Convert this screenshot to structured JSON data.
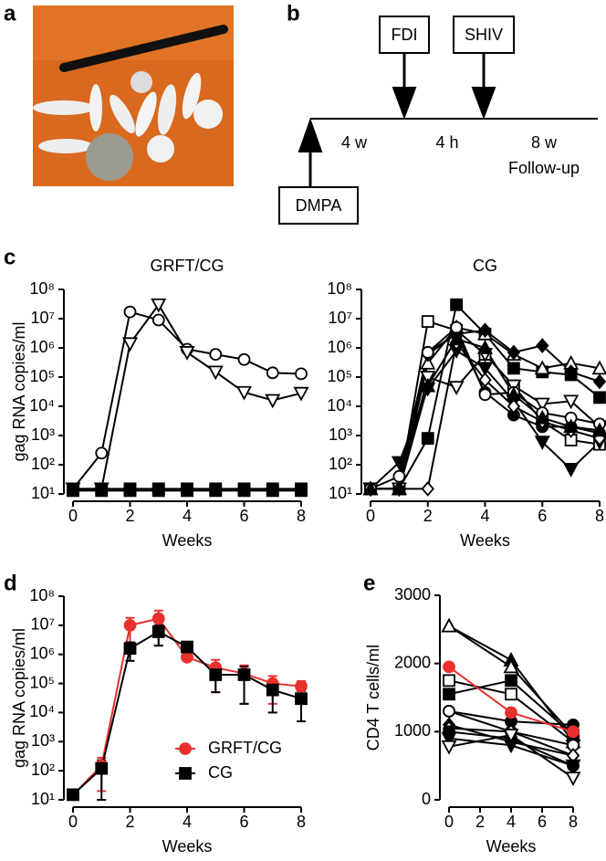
{
  "panel_labels": [
    "a",
    "b",
    "c",
    "d",
    "e"
  ],
  "timeline": {
    "boxes": [
      "FDI",
      "SHIV",
      "DMPA"
    ],
    "intervals": [
      "4 w",
      "4 h",
      "8 w"
    ],
    "note": "Follow-up"
  },
  "chart_data": [
    {
      "type": "line",
      "title": "GRFT/CG",
      "xlabel": "Weeks",
      "ylabel": "gag RNA copies/ml",
      "log_y": true,
      "x": [
        0,
        1,
        2,
        3,
        4,
        5,
        6,
        7,
        8
      ],
      "xlim": [
        0,
        8
      ],
      "xticks": [
        0,
        2,
        4,
        6,
        8
      ],
      "ylim": [
        10,
        100000000
      ],
      "yticks": [
        {
          "value": 10,
          "label": "10¹"
        },
        {
          "value": 100,
          "label": "10²"
        },
        {
          "value": 1000,
          "label": "10³"
        },
        {
          "value": 10000,
          "label": "10⁴"
        },
        {
          "value": 100000,
          "label": "10⁵"
        },
        {
          "value": 1000000,
          "label": "10⁶"
        },
        {
          "value": 10000000,
          "label": "10⁷"
        },
        {
          "value": 100000000,
          "label": "10⁸"
        }
      ],
      "series": [
        {
          "color": "#000000",
          "marker": "circle",
          "filled": false,
          "values": [
            15,
            250,
            17000000,
            9000000,
            900000,
            600000,
            400000,
            140000,
            130000
          ]
        },
        {
          "color": "#000000",
          "marker": "triangle-down",
          "filled": false,
          "values": [
            15,
            15,
            1400000,
            30000000,
            700000,
            150000,
            30000,
            16000,
            28000
          ]
        },
        {
          "color": "#000000",
          "marker": "square",
          "filled": true,
          "values": [
            15,
            15,
            15,
            15,
            15,
            15,
            15,
            15,
            15
          ]
        },
        {
          "color": "#000000",
          "marker": "square",
          "filled": true,
          "values": [
            13,
            13,
            13,
            13,
            13,
            13,
            13,
            13,
            13
          ]
        }
      ]
    },
    {
      "type": "line",
      "title": "CG",
      "xlabel": "Weeks",
      "log_y": true,
      "x": [
        0,
        1,
        2,
        3,
        4,
        5,
        6,
        7,
        8
      ],
      "xlim": [
        0,
        8
      ],
      "xticks": [
        0,
        2,
        4,
        6,
        8
      ],
      "ylim": [
        10,
        100000000
      ],
      "yticks": [
        {
          "value": 10,
          "label": "10¹"
        },
        {
          "value": 100,
          "label": "10²"
        },
        {
          "value": 1000,
          "label": "10³"
        },
        {
          "value": 10000,
          "label": "10⁴"
        },
        {
          "value": 100000,
          "label": "10⁵"
        },
        {
          "value": 1000000,
          "label": "10⁶"
        },
        {
          "value": 10000000,
          "label": "10⁷"
        },
        {
          "value": 100000000,
          "label": "10⁸"
        }
      ],
      "series": [
        {
          "color": "#000000",
          "marker": "square",
          "filled": true,
          "values": [
            15,
            15,
            800,
            30000000,
            3000000,
            200000,
            150000,
            120000,
            20000
          ]
        },
        {
          "color": "#000000",
          "marker": "triangle-up",
          "filled": false,
          "values": [
            15,
            15,
            300000,
            5000000,
            3000000,
            600000,
            200000,
            300000,
            200000
          ]
        },
        {
          "color": "#000000",
          "marker": "diamond",
          "filled": true,
          "values": [
            15,
            15,
            600000,
            3000000,
            4000000,
            700000,
            1200000,
            150000,
            70000
          ]
        },
        {
          "color": "#000000",
          "marker": "square",
          "filled": false,
          "values": [
            15,
            15,
            8000000,
            4000000,
            600000,
            50000,
            3000,
            700,
            500
          ]
        },
        {
          "color": "#000000",
          "marker": "triangle-down",
          "filled": true,
          "values": [
            15,
            120,
            40000,
            800000,
            200000,
            15000,
            600,
            70,
            600
          ]
        },
        {
          "color": "#000000",
          "marker": "circle",
          "filled": true,
          "values": [
            15,
            15,
            700000,
            3000000,
            30000,
            5000,
            2000,
            2000,
            1200
          ]
        },
        {
          "color": "#000000",
          "marker": "triangle-down",
          "filled": false,
          "values": [
            15,
            15,
            100000,
            45000,
            600000,
            50000,
            12000,
            15000,
            2000
          ]
        },
        {
          "color": "#000000",
          "marker": "diamond",
          "filled": false,
          "values": [
            15,
            15,
            15,
            1500000,
            80000,
            10000,
            3000,
            1500,
            800
          ]
        },
        {
          "color": "#000000",
          "marker": "circle",
          "filled": false,
          "values": [
            15,
            40,
            700000,
            5000000,
            25000,
            30000,
            6000,
            4000,
            2500
          ]
        },
        {
          "color": "#000000",
          "marker": "triangle-up",
          "filled": true,
          "values": [
            15,
            15,
            50000,
            2000000,
            1000000,
            25000,
            4000,
            2000,
            1500
          ]
        }
      ]
    },
    {
      "type": "errorline",
      "xlabel": "Weeks",
      "ylabel": "gag RNA copies/ml",
      "log_y": true,
      "x": [
        0,
        1,
        2,
        3,
        4,
        5,
        6,
        7,
        8
      ],
      "xlim": [
        0,
        8
      ],
      "xticks": [
        0,
        2,
        4,
        6,
        8
      ],
      "ylim": [
        10,
        100000000
      ],
      "yticks": [
        {
          "value": 10,
          "label": "10¹"
        },
        {
          "value": 100,
          "label": "10²"
        },
        {
          "value": 1000,
          "label": "10³"
        },
        {
          "value": 10000,
          "label": "10⁴"
        },
        {
          "value": 100000,
          "label": "10⁵"
        },
        {
          "value": 1000000,
          "label": "10⁶"
        },
        {
          "value": 10000000,
          "label": "10⁷"
        },
        {
          "value": 100000000,
          "label": "10⁸"
        }
      ],
      "series": [
        {
          "name": "GRFT/CG",
          "color": "#e8312f",
          "marker": "circle",
          "filled": true,
          "values": [
            15,
            150,
            10000000,
            17000000,
            800000,
            350000,
            220000,
            100000,
            80000
          ],
          "errors": [
            0,
            130,
            8000000,
            15000000,
            200000,
            300000,
            200000,
            80000,
            40000
          ]
        },
        {
          "name": "CG",
          "color": "#000000",
          "marker": "square",
          "filled": true,
          "values": [
            15,
            120,
            1600000,
            6000000,
            1800000,
            200000,
            200000,
            60000,
            30000
          ],
          "errors": [
            0,
            110,
            1000000,
            4000000,
            500000,
            150000,
            180000,
            50000,
            25000
          ]
        }
      ]
    },
    {
      "type": "line",
      "xlabel": "Weeks",
      "ylabel": "CD4 T cells/ml",
      "x": [
        0,
        4,
        8
      ],
      "xlim": [
        0,
        8
      ],
      "xticks": [
        0,
        2,
        4,
        6,
        8
      ],
      "ylim": [
        0,
        3000
      ],
      "yticks": [
        0,
        1000,
        2000,
        3000
      ],
      "series": [
        {
          "color": "#000000",
          "marker": "triangle-up",
          "filled": true,
          "values": [
            2550,
            2050,
            850
          ]
        },
        {
          "color": "#000000",
          "marker": "triangle-up",
          "filled": false,
          "values": [
            2550,
            1950,
            950
          ]
        },
        {
          "color": "#000000",
          "marker": "square",
          "filled": false,
          "values": [
            1750,
            1550,
            850
          ]
        },
        {
          "color": "#000000",
          "marker": "square",
          "filled": true,
          "values": [
            1550,
            1750,
            950
          ]
        },
        {
          "color": "#000000",
          "marker": "circle",
          "filled": true,
          "values": [
            1300,
            1150,
            1100
          ]
        },
        {
          "color": "#000000",
          "marker": "circle",
          "filled": false,
          "values": [
            1300,
            1000,
            800
          ]
        },
        {
          "color": "#000000",
          "marker": "diamond",
          "filled": true,
          "values": [
            1100,
            850,
            650
          ]
        },
        {
          "color": "#000000",
          "marker": "diamond",
          "filled": false,
          "values": [
            1050,
            1000,
            650
          ]
        },
        {
          "color": "#000000",
          "marker": "circle",
          "filled": true,
          "values": [
            1000,
            900,
            500
          ]
        },
        {
          "color": "#000000",
          "marker": "triangle-down",
          "filled": true,
          "values": [
            900,
            800,
            500
          ]
        },
        {
          "color": "#000000",
          "marker": "triangle-down",
          "filled": false,
          "values": [
            780,
            950,
            320
          ]
        },
        {
          "color": "#e8312f",
          "marker": "circle",
          "filled": true,
          "values": [
            1950,
            1280,
            1000
          ]
        }
      ]
    }
  ]
}
